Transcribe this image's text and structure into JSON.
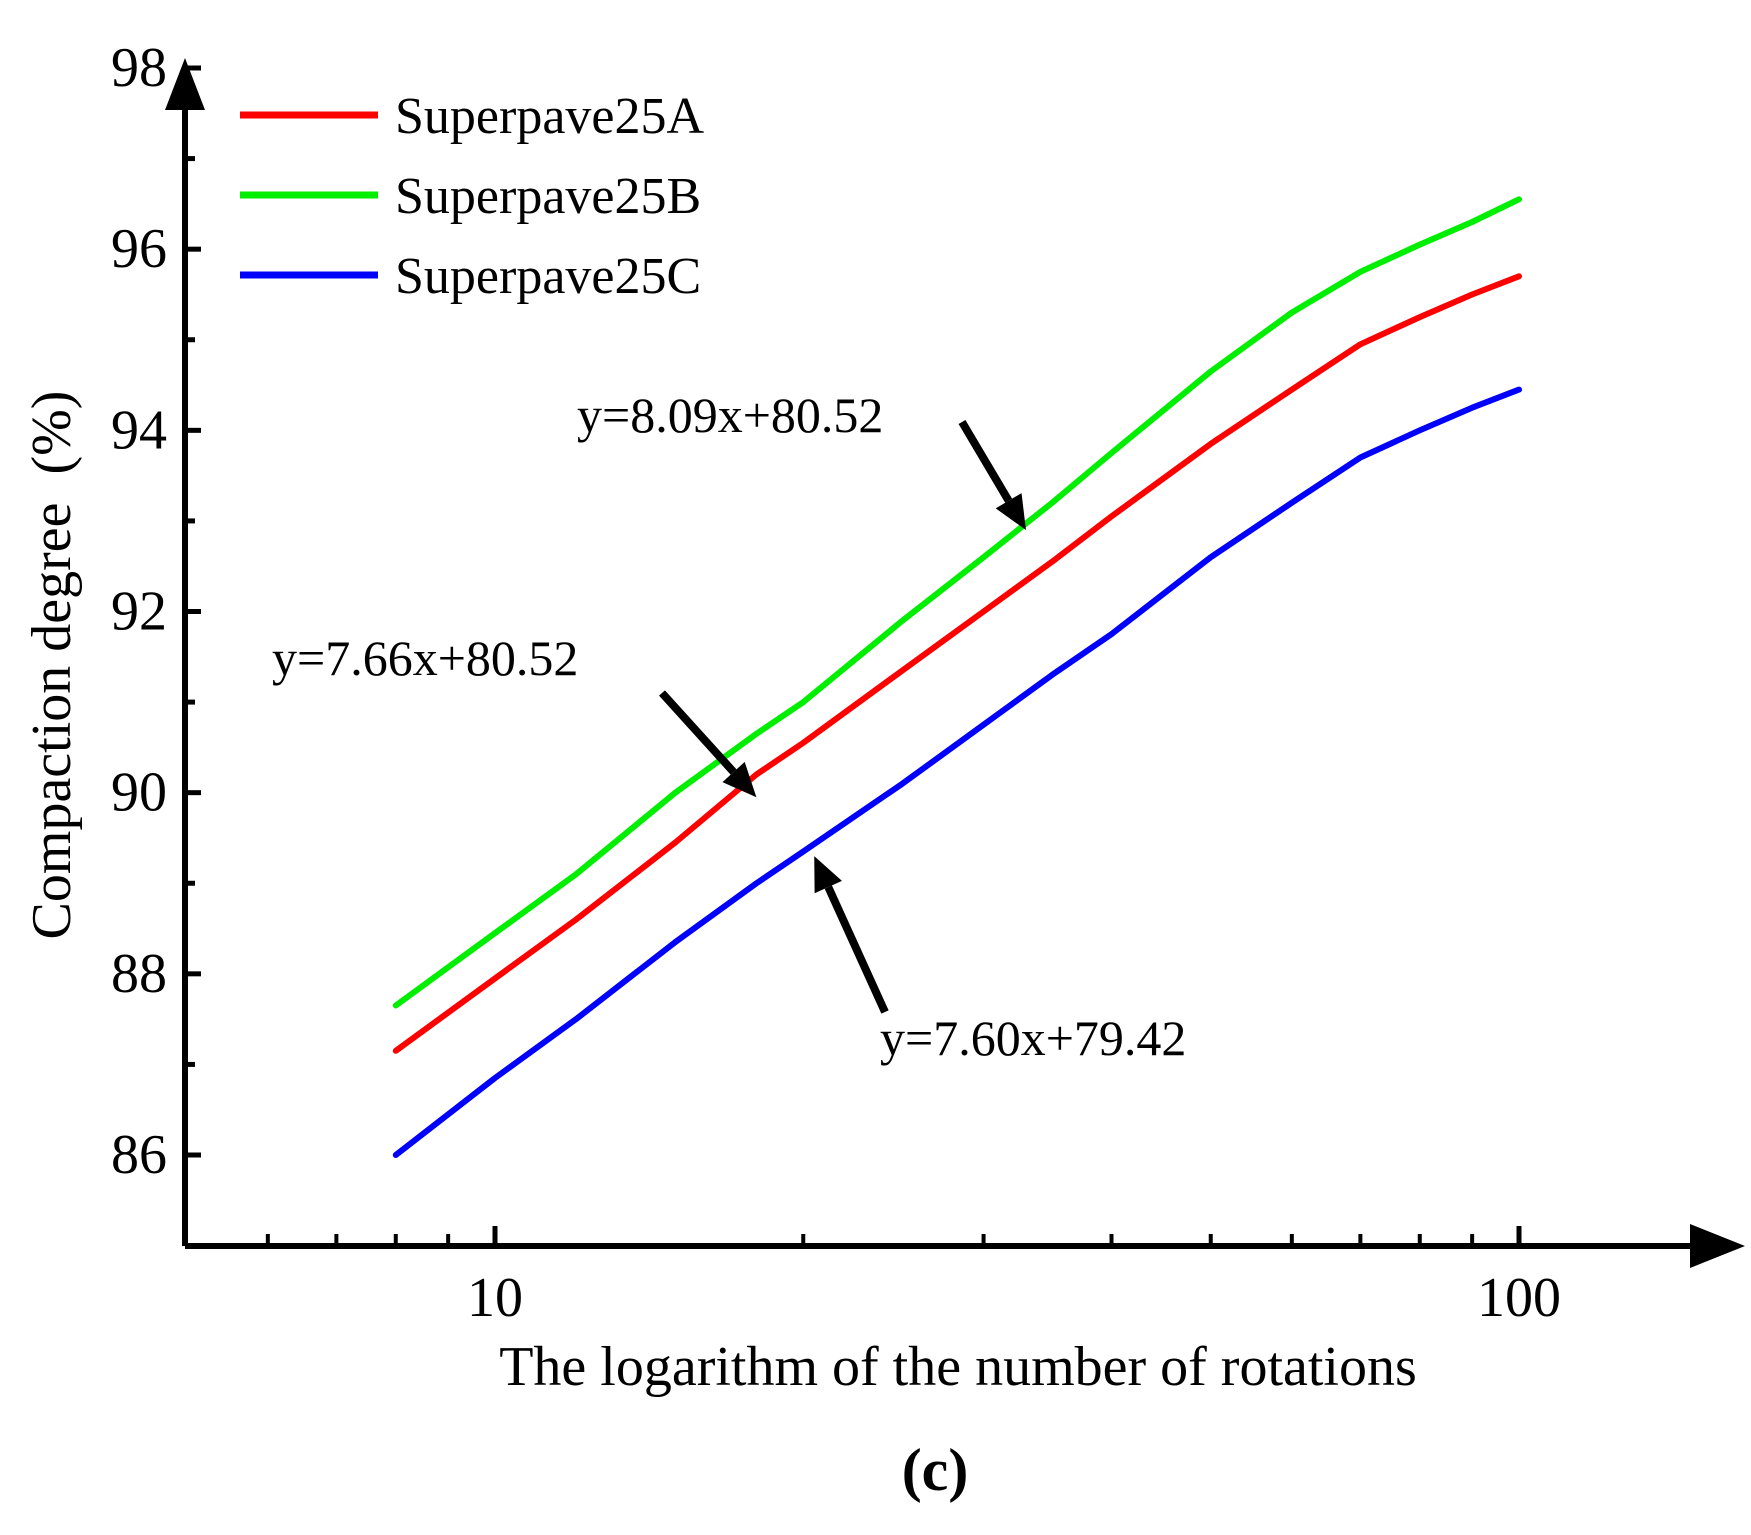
{
  "chart_data": {
    "type": "line",
    "title": "",
    "xlabel": "The logarithm of the number of rotations",
    "ylabel": "Compaction degree  (%)",
    "x_scale": "log",
    "xlim": [
      5.6,
      160
    ],
    "ylim": [
      85,
      98
    ],
    "x_ticks": [
      10,
      100
    ],
    "x_tick_labels": [
      "10",
      "100"
    ],
    "y_ticks": [
      86,
      88,
      90,
      92,
      94,
      96,
      98
    ],
    "y_tick_labels": [
      "86",
      "88",
      "90",
      "92",
      "94",
      "96",
      "98"
    ],
    "grid": false,
    "legend_position": "top-left",
    "series": [
      {
        "name": "Superpave25A",
        "color": "#ff0000",
        "x": [
          8,
          10,
          12,
          15,
          18,
          20,
          25,
          30,
          35,
          40,
          50,
          60,
          70,
          80,
          90,
          100
        ],
        "y": [
          87.15,
          87.95,
          88.6,
          89.45,
          90.2,
          90.55,
          91.35,
          92.0,
          92.55,
          93.05,
          93.85,
          94.45,
          94.95,
          95.25,
          95.5,
          95.7
        ]
      },
      {
        "name": "Superpave25B",
        "color": "#00ee00",
        "x": [
          8,
          10,
          12,
          15,
          18,
          20,
          25,
          30,
          35,
          40,
          50,
          60,
          70,
          80,
          90,
          100
        ],
        "y": [
          87.65,
          88.45,
          89.1,
          90.0,
          90.65,
          91.0,
          91.9,
          92.6,
          93.2,
          93.75,
          94.65,
          95.3,
          95.75,
          96.05,
          96.3,
          96.55
        ]
      },
      {
        "name": "Superpave25C",
        "color": "#0000ff",
        "x": [
          8,
          10,
          12,
          15,
          18,
          20,
          25,
          30,
          35,
          40,
          50,
          60,
          70,
          80,
          90,
          100
        ],
        "y": [
          86.0,
          86.85,
          87.5,
          88.35,
          89.0,
          89.35,
          90.1,
          90.75,
          91.3,
          91.75,
          92.6,
          93.2,
          93.7,
          94.0,
          94.25,
          94.45
        ]
      }
    ],
    "annotations": [
      {
        "text": "y=8.09x+80.52",
        "series": "Superpave25B",
        "points_to": [
          33,
          92.9
        ]
      },
      {
        "text": "y=7.66x+80.52",
        "series": "Superpave25A",
        "points_to": [
          18,
          89.95
        ]
      },
      {
        "text": "y=7.60x+79.42",
        "series": "Superpave25C",
        "points_to": [
          20.5,
          89.3
        ]
      }
    ],
    "panel_label": "(c)"
  }
}
